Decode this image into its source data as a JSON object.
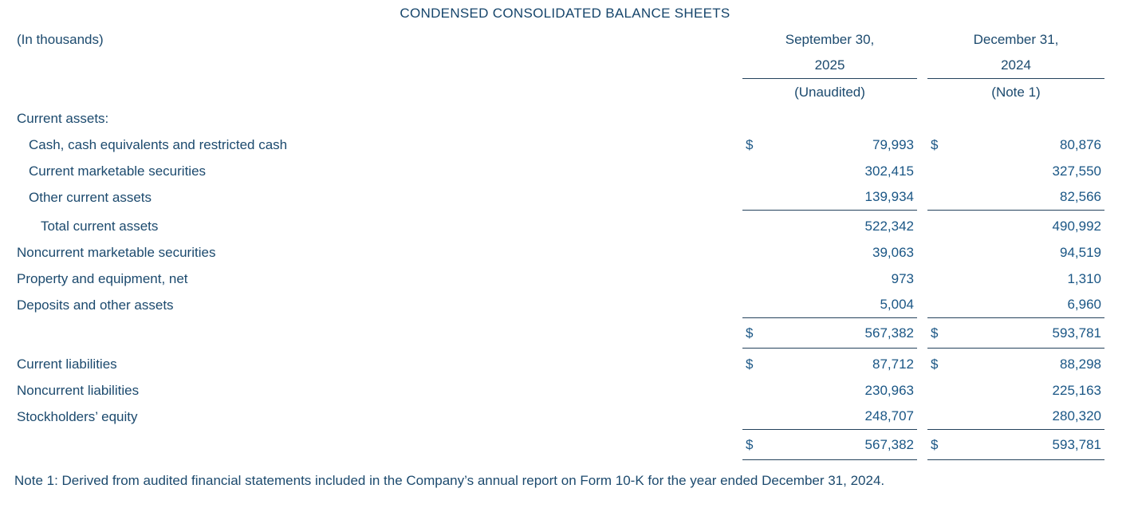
{
  "title": "CONDENSED CONSOLIDATED BALANCE SHEETS",
  "units_label": "(In thousands)",
  "columns": [
    {
      "period": "September 30,",
      "year": "2025",
      "subnote": "(Unaudited)"
    },
    {
      "period": "December 31,",
      "year": "2024",
      "subnote": "(Note 1)"
    }
  ],
  "rows": [
    {
      "label": "Current assets:",
      "d1": "",
      "v1": "",
      "d2": "",
      "v2": ""
    },
    {
      "label": "Cash, cash equivalents and restricted cash",
      "d1": "$",
      "v1": "79,993",
      "d2": "$",
      "v2": "80,876"
    },
    {
      "label": "Current marketable securities",
      "d1": "",
      "v1": "302,415",
      "d2": "",
      "v2": "327,550"
    },
    {
      "label": "Other current assets",
      "d1": "",
      "v1": "139,934",
      "d2": "",
      "v2": "82,566"
    },
    {
      "label": "Total current assets",
      "d1": "",
      "v1": "522,342",
      "d2": "",
      "v2": "490,992"
    },
    {
      "label": "Noncurrent marketable securities",
      "d1": "",
      "v1": "39,063",
      "d2": "",
      "v2": "94,519"
    },
    {
      "label": "Property and equipment, net",
      "d1": "",
      "v1": "973",
      "d2": "",
      "v2": "1,310"
    },
    {
      "label": "Deposits and other assets",
      "d1": "",
      "v1": "5,004",
      "d2": "",
      "v2": "6,960"
    },
    {
      "label": "",
      "d1": "$",
      "v1": "567,382",
      "d2": "$",
      "v2": "593,781"
    },
    {
      "label": "Current liabilities",
      "d1": "$",
      "v1": "87,712",
      "d2": "$",
      "v2": "88,298"
    },
    {
      "label": "Noncurrent liabilities",
      "d1": "",
      "v1": "230,963",
      "d2": "",
      "v2": "225,163"
    },
    {
      "label": "Stockholders’ equity",
      "d1": "",
      "v1": "248,707",
      "d2": "",
      "v2": "280,320"
    },
    {
      "label": "",
      "d1": "$",
      "v1": "567,382",
      "d2": "$",
      "v2": "593,781"
    }
  ],
  "note": "Note 1: Derived from audited financial statements included in the Company’s annual report on Form 10-K for the year ended December 31, 2024.",
  "colors": {
    "label_text": "#1c4a6e",
    "value_text": "#1a5685",
    "rule": "#24425c",
    "background": "#ffffff"
  }
}
